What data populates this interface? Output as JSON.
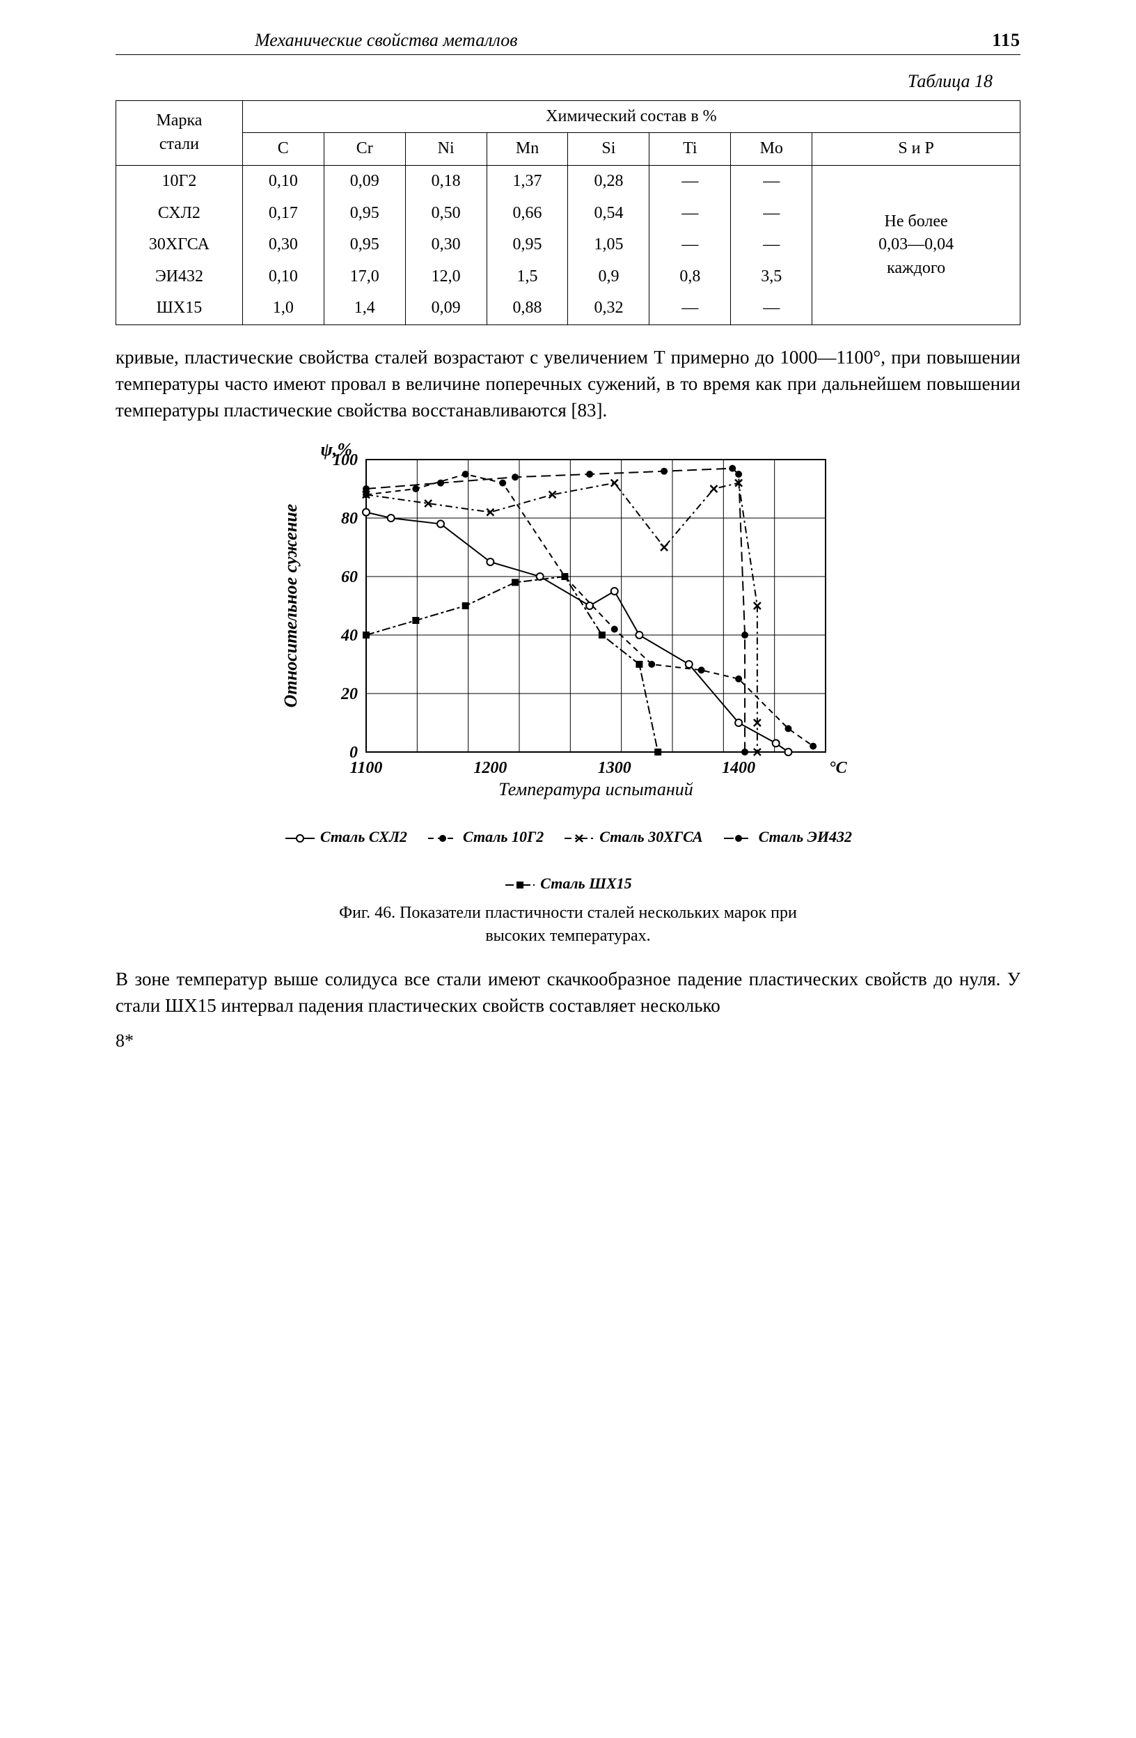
{
  "page": {
    "running_title": "Механические свойства металлов",
    "page_number": "115",
    "table_label": "Таблица 18",
    "footer": "8*"
  },
  "table": {
    "header_left": "Марка\nстали",
    "header_group": "Химический состав в %",
    "columns": [
      "C",
      "Cr",
      "Ni",
      "Mn",
      "Si",
      "Ti",
      "Mo",
      "S и P"
    ],
    "col_widths_pct": [
      14,
      9,
      9,
      9,
      9,
      9,
      9,
      9,
      23
    ],
    "rows": [
      {
        "label": "10Г2",
        "c": "0,10",
        "cr": "0,09",
        "ni": "0,18",
        "mn": "1,37",
        "si": "0,28",
        "ti": "—",
        "mo": "—"
      },
      {
        "label": "СХЛ2",
        "c": "0,17",
        "cr": "0,95",
        "ni": "0,50",
        "mn": "0,66",
        "si": "0,54",
        "ti": "—",
        "mo": "—"
      },
      {
        "label": "30ХГСА",
        "c": "0,30",
        "cr": "0,95",
        "ni": "0,30",
        "mn": "0,95",
        "si": "1,05",
        "ti": "—",
        "mo": "—"
      },
      {
        "label": "ЭИ432",
        "c": "0,10",
        "cr": "17,0",
        "ni": "12,0",
        "mn": "1,5",
        "si": "0,9",
        "ti": "0,8",
        "mo": "3,5"
      },
      {
        "label": "ШХ15",
        "c": "1,0",
        "cr": "1,4",
        "ni": "0,09",
        "mn": "0,88",
        "si": "0,32",
        "ti": "—",
        "mo": "—"
      }
    ],
    "sp_note": "Не более\n0,03—0,04\nкаждого"
  },
  "paragraph1": "кривые, пластические свойства сталей возрастают с увеличением T примерно до 1000—1100°, при повышении температуры часто имеют провал в величине поперечных сужений, в то время как при дальнейшем повышении температуры пластические свойства восстанавливаются [83].",
  "figure": {
    "y_axis_title": "Относительное сужение",
    "y_unit": "ψ,%",
    "x_axis_title": "Температура испытаний",
    "x_unit": "°С",
    "xlim": [
      1100,
      1470
    ],
    "ylim": [
      0,
      100
    ],
    "xticks": [
      1100,
      1200,
      1300,
      1400
    ],
    "yticks": [
      0,
      20,
      40,
      60,
      80,
      100
    ],
    "grid_color": "#000000",
    "background": "#ffffff",
    "line_width": 2,
    "series": [
      {
        "name": "Сталь СХЛ2",
        "marker": "o-open",
        "dash": "solid",
        "pts": [
          [
            1100,
            82
          ],
          [
            1120,
            80
          ],
          [
            1160,
            78
          ],
          [
            1200,
            65
          ],
          [
            1240,
            60
          ],
          [
            1280,
            50
          ],
          [
            1300,
            55
          ],
          [
            1320,
            40
          ],
          [
            1360,
            30
          ],
          [
            1400,
            10
          ],
          [
            1430,
            3
          ],
          [
            1440,
            0
          ]
        ]
      },
      {
        "name": "Сталь 10Г2",
        "marker": "dot",
        "dash": "dash",
        "pts": [
          [
            1100,
            88
          ],
          [
            1140,
            90
          ],
          [
            1180,
            95
          ],
          [
            1210,
            92
          ],
          [
            1260,
            60
          ],
          [
            1300,
            42
          ],
          [
            1330,
            30
          ],
          [
            1370,
            28
          ],
          [
            1400,
            25
          ],
          [
            1440,
            8
          ],
          [
            1460,
            2
          ]
        ]
      },
      {
        "name": "Сталь 30ХГСА",
        "marker": "x",
        "dash": "dashdot",
        "pts": [
          [
            1100,
            88
          ],
          [
            1150,
            85
          ],
          [
            1200,
            82
          ],
          [
            1250,
            88
          ],
          [
            1300,
            92
          ],
          [
            1340,
            70
          ],
          [
            1380,
            90
          ],
          [
            1400,
            92
          ],
          [
            1415,
            50
          ],
          [
            1415,
            10
          ],
          [
            1415,
            0
          ]
        ]
      },
      {
        "name": "Сталь ЭИ432",
        "marker": "dot",
        "dash": "longdash",
        "pts": [
          [
            1100,
            90
          ],
          [
            1160,
            92
          ],
          [
            1220,
            94
          ],
          [
            1280,
            95
          ],
          [
            1340,
            96
          ],
          [
            1395,
            97
          ],
          [
            1400,
            95
          ],
          [
            1405,
            40
          ],
          [
            1405,
            0
          ]
        ]
      },
      {
        "name": "Сталь ШХ15",
        "marker": "sq",
        "dash": "longdash2",
        "pts": [
          [
            1100,
            40
          ],
          [
            1140,
            45
          ],
          [
            1180,
            50
          ],
          [
            1220,
            58
          ],
          [
            1260,
            60
          ],
          [
            1290,
            40
          ],
          [
            1320,
            30
          ],
          [
            1335,
            0
          ]
        ]
      }
    ],
    "legend_order": [
      0,
      1,
      2,
      3,
      4
    ],
    "caption": "Фиг. 46. Показатели пластичности сталей нескольких марок при высоких температурах."
  },
  "paragraph2": "В зоне температур выше солидуса все стали имеют скачкообразное падение пластических свойств до нуля. У стали ШХ15 интервал падения пластических свойств составляет несколько"
}
